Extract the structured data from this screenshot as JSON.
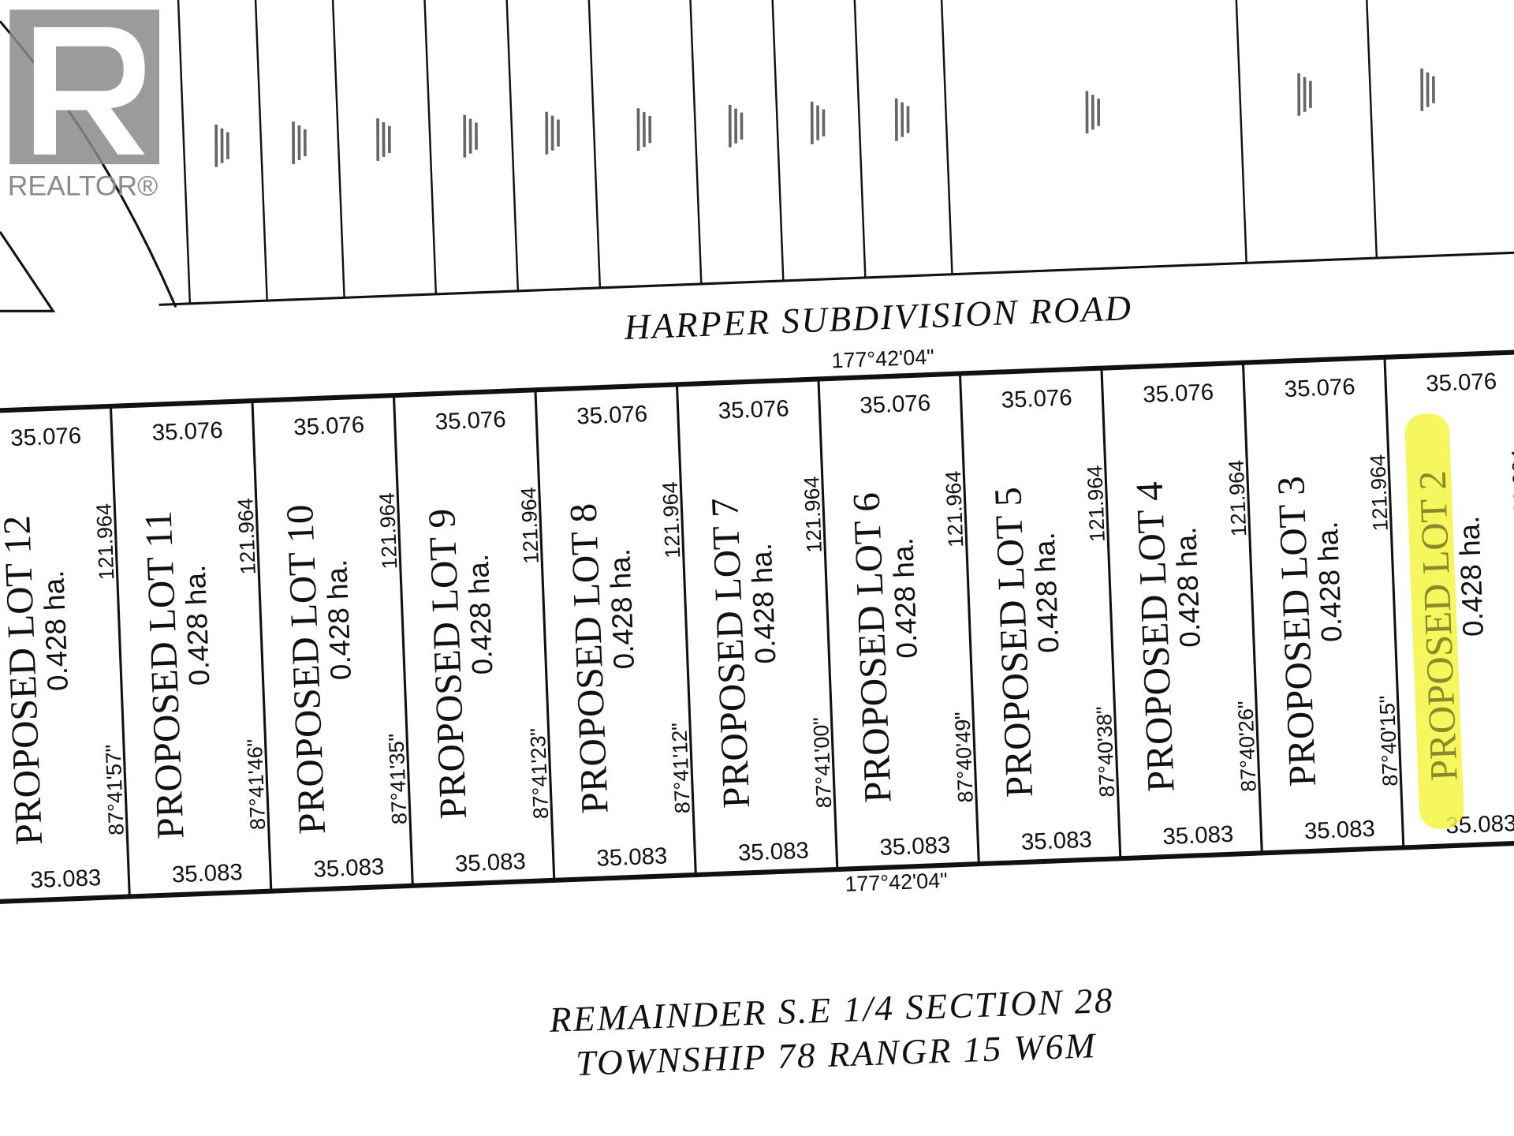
{
  "logo": {
    "text": "REALTOR®",
    "brand_color": "#8a8a8a"
  },
  "road": {
    "name": "HARPER SUBDIVISION ROAD",
    "bearing_top": "177°42'04\"",
    "bearing_bottom": "177°42'04\""
  },
  "remainder": {
    "line1": "REMAINDER S.E 1/4 SECTION 28",
    "line2": "TOWNSHIP 78 RANGR 15 W6M"
  },
  "highlight_color": "#f5f542",
  "lots": [
    {
      "name": "PROPOSED LOT 12",
      "area": "0.428 ha.",
      "front": "35.076",
      "rear": "35.083",
      "angle": "87°41'57\"",
      "depth": "121.964"
    },
    {
      "name": "PROPOSED LOT 11",
      "area": "0.428 ha.",
      "front": "35.076",
      "rear": "35.083",
      "angle": "87°41'46\"",
      "depth": "121.964"
    },
    {
      "name": "PROPOSED LOT 10",
      "area": "0.428 ha.",
      "front": "35.076",
      "rear": "35.083",
      "angle": "87°41'35\"",
      "depth": "121.964"
    },
    {
      "name": "PROPOSED LOT 9",
      "area": "0.428 ha.",
      "front": "35.076",
      "rear": "35.083",
      "angle": "87°41'23\"",
      "depth": "121.964"
    },
    {
      "name": "PROPOSED LOT 8",
      "area": "0.428 ha.",
      "front": "35.076",
      "rear": "35.083",
      "angle": "87°41'12\"",
      "depth": "121.964"
    },
    {
      "name": "PROPOSED LOT 7",
      "area": "0.428 ha.",
      "front": "35.076",
      "rear": "35.083",
      "angle": "87°41'00\"",
      "depth": "121.964"
    },
    {
      "name": "PROPOSED LOT 6",
      "area": "0.428 ha.",
      "front": "35.076",
      "rear": "35.083",
      "angle": "87°40'49\"",
      "depth": "121.964"
    },
    {
      "name": "PROPOSED LOT 5",
      "area": "0.428 ha.",
      "front": "35.076",
      "rear": "35.083",
      "angle": "87°40'38\"",
      "depth": "121.964"
    },
    {
      "name": "PROPOSED LOT 4",
      "area": "0.428 ha.",
      "front": "35.076",
      "rear": "35.083",
      "angle": "87°40'26\"",
      "depth": "121.964"
    },
    {
      "name": "PROPOSED LOT 3",
      "area": "0.428 ha.",
      "front": "35.076",
      "rear": "35.083",
      "angle": "87°40'15\"",
      "depth": "121.964"
    },
    {
      "name": "PROPOSED LOT 2",
      "area": "0.428 ha.",
      "front": "35.076",
      "rear": "35.083",
      "angle": "",
      "depth": "121.964",
      "highlighted": true
    }
  ]
}
